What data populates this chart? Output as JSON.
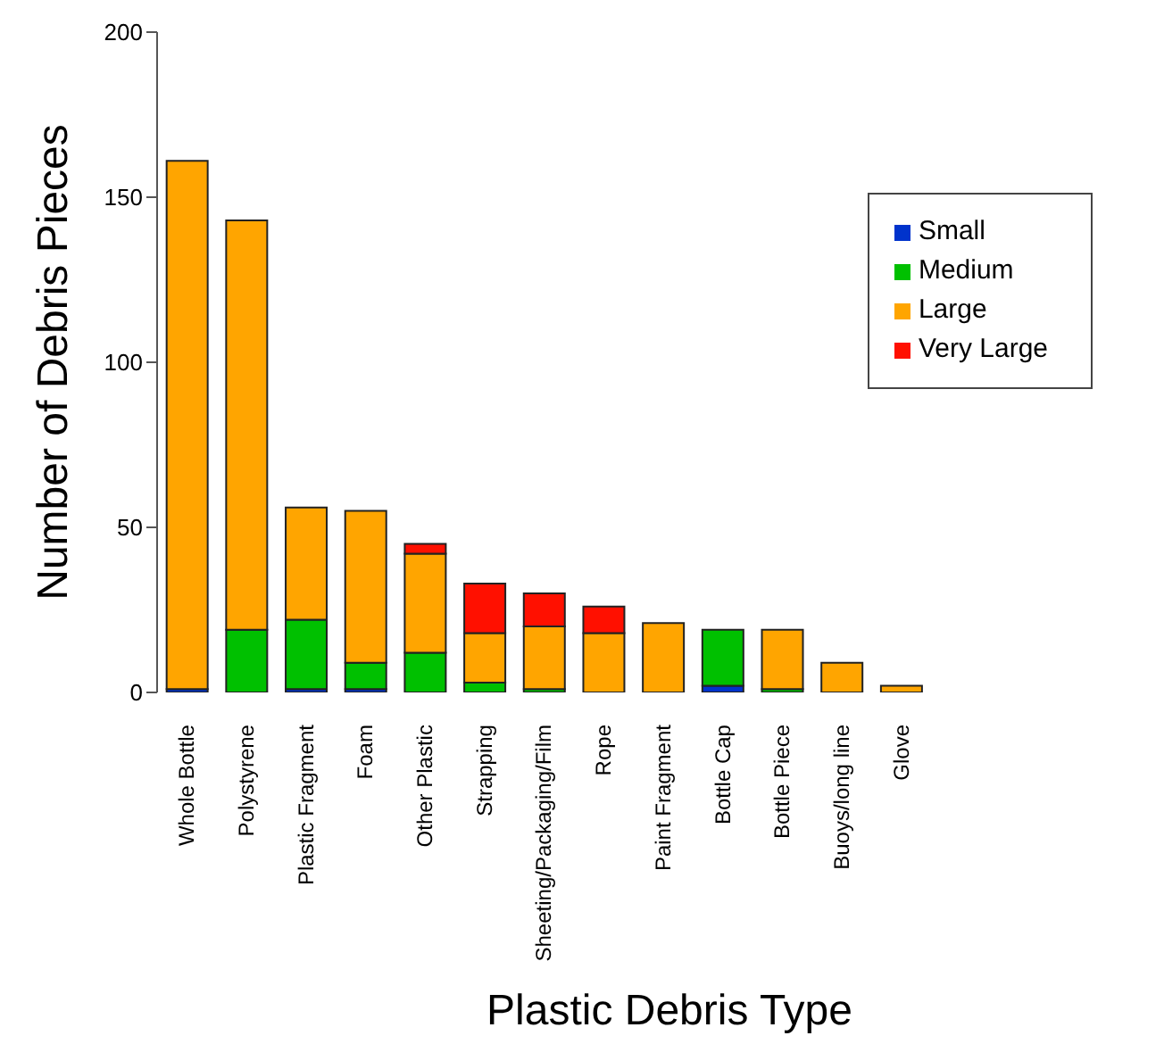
{
  "chart_data": {
    "type": "bar",
    "stacked": true,
    "xlabel": "Plastic Debris Type",
    "ylabel": "Number of Debris Pieces",
    "categories": [
      "Whole Bottle",
      "Polystyrene",
      "Plastic Fragment",
      "Foam",
      "Other Plastic",
      "Strapping",
      "Sheeting/Packaging/Film",
      "Rope",
      "Paint Fragment",
      "Bottle Cap",
      "Bottle Piece",
      "Buoys/long line",
      "Glove"
    ],
    "series": [
      {
        "name": "Small",
        "color": "#0033cc",
        "values": [
          1,
          0,
          1,
          1,
          0,
          0,
          0,
          0,
          0,
          2,
          0,
          0,
          0
        ]
      },
      {
        "name": "Medium",
        "color": "#00c000",
        "values": [
          0,
          19,
          21,
          8,
          12,
          3,
          1,
          0,
          0,
          17,
          1,
          0,
          0
        ]
      },
      {
        "name": "Large",
        "color": "#ffa500",
        "values": [
          160,
          124,
          34,
          46,
          30,
          15,
          19,
          18,
          21,
          0,
          18,
          9,
          2
        ]
      },
      {
        "name": "Very Large",
        "color": "#ff1000",
        "values": [
          0,
          0,
          0,
          0,
          3,
          15,
          10,
          8,
          0,
          0,
          0,
          0,
          0
        ]
      }
    ],
    "ylim": [
      0,
      200
    ],
    "yticks": [
      0,
      50,
      100,
      150,
      200
    ],
    "grid": false,
    "legend": "top right"
  }
}
